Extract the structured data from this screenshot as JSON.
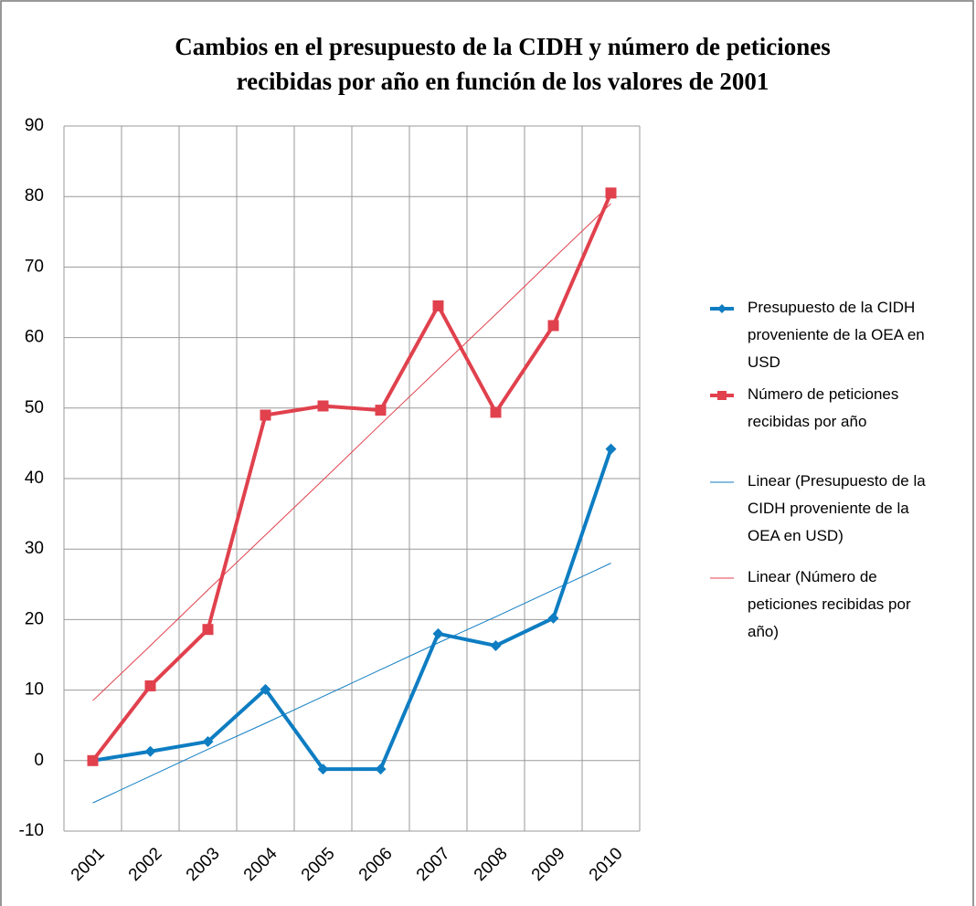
{
  "chart_data": {
    "type": "line",
    "title": "Cambios en el presupuesto de la CIDH y número de peticiones recibidas por año en función de los valores de 2001",
    "categories": [
      "2001",
      "2002",
      "2003",
      "2004",
      "2005",
      "2006",
      "2007",
      "2008",
      "2009",
      "2010"
    ],
    "series": [
      {
        "name": "Presupuesto de la CIDH proveniente de la OEA en USD",
        "color": "#0e7dc2",
        "marker": "diamond",
        "values": [
          0,
          1.3,
          2.7,
          10.1,
          -1.2,
          -1.2,
          18.0,
          16.3,
          20.2,
          44.2
        ]
      },
      {
        "name": "Número de peticiones recibidas por año",
        "color": "#e0414d",
        "marker": "square",
        "values": [
          0,
          10.6,
          18.6,
          49.0,
          50.3,
          49.7,
          64.5,
          49.4,
          61.7,
          80.5
        ]
      },
      {
        "name": "Linear (Presupuesto de la CIDH proveniente de la OEA en USD)",
        "color": "#0e7dc2",
        "marker": "none",
        "values": [
          -6,
          -2.2,
          1.6,
          5.3,
          9.1,
          12.9,
          16.7,
          20.4,
          24.2,
          28
        ]
      },
      {
        "name": "Linear (Número de peticiones recibidas por año)",
        "color": "#e0414d",
        "marker": "none",
        "values": [
          8.5,
          16.3,
          24.2,
          32.0,
          39.8,
          47.7,
          55.5,
          63.3,
          71.2,
          79.0
        ]
      }
    ],
    "ylim": [
      -10,
      90
    ],
    "yticks": [
      -10,
      0,
      10,
      20,
      30,
      40,
      50,
      60,
      70,
      80,
      90
    ],
    "grid": true,
    "legend": "right"
  }
}
